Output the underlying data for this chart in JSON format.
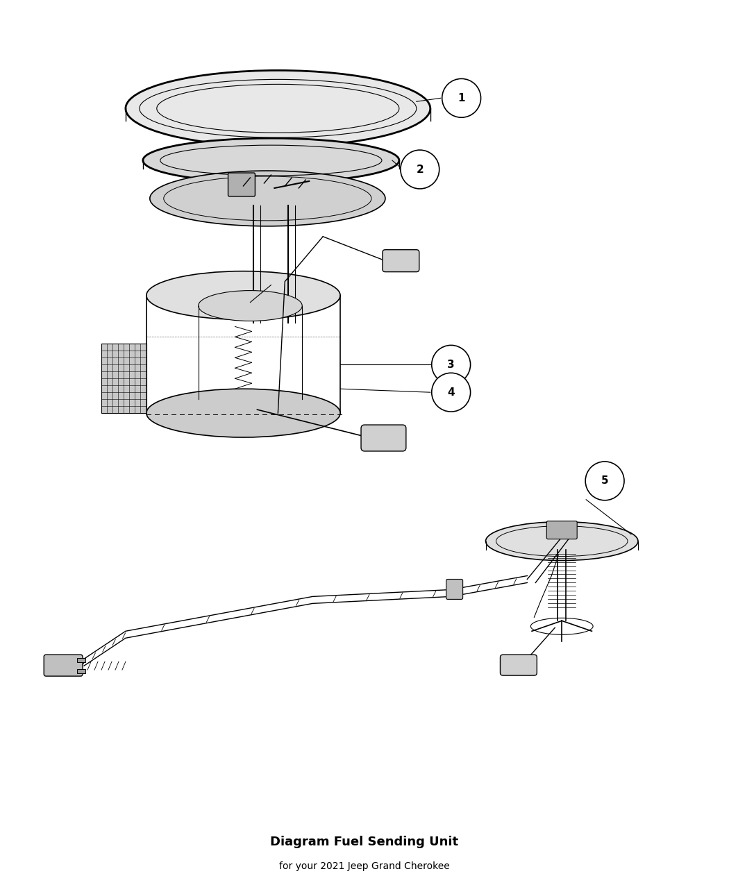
{
  "title": "Diagram Fuel Sending Unit",
  "subtitle": "for your 2021 Jeep Grand Cherokee",
  "background_color": "#ffffff",
  "line_color": "#000000",
  "label_circle_color": "#ffffff",
  "label_numbers": [
    1,
    2,
    3,
    4,
    5
  ],
  "fig_width": 10.5,
  "fig_height": 12.75,
  "dpi": 100
}
